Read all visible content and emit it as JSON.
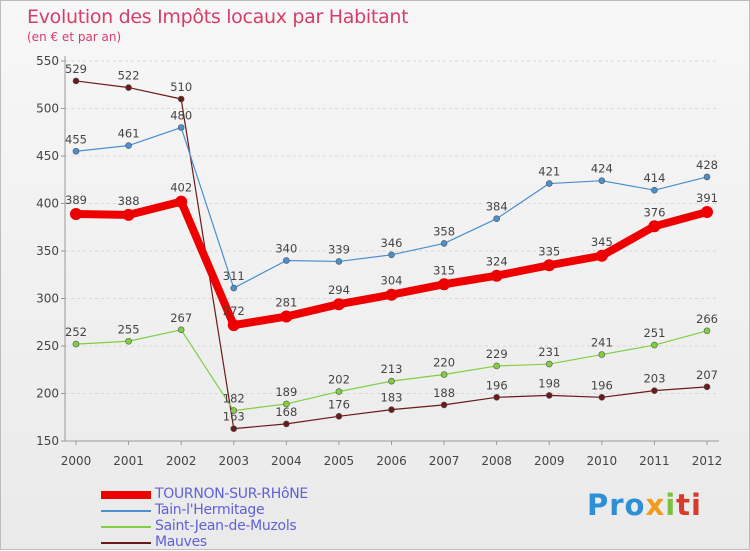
{
  "chart_data": {
    "type": "line",
    "title": "Evolution des Impôts locaux par Habitant",
    "subtitle": "(en € et par an)",
    "xlabel": "",
    "ylabel": "",
    "x": [
      "2000",
      "2001",
      "2002",
      "2003",
      "2004",
      "2005",
      "2006",
      "2007",
      "2008",
      "2009",
      "2010",
      "2011",
      "2012"
    ],
    "ylim": [
      150,
      550
    ],
    "yticks": [
      150,
      200,
      250,
      300,
      350,
      400,
      450,
      500,
      550
    ],
    "grid": "horizontal",
    "legend_position": "bottom-left",
    "series": [
      {
        "name": "TOURNON-SUR-RHôNE",
        "color": "#ee0000",
        "values": [
          389,
          388,
          402,
          272,
          281,
          294,
          304,
          315,
          324,
          335,
          345,
          376,
          391
        ]
      },
      {
        "name": "Tain-l'Hermitage",
        "color": "#4a8fcf",
        "values": [
          455,
          461,
          480,
          311,
          340,
          339,
          346,
          358,
          384,
          421,
          424,
          414,
          428
        ]
      },
      {
        "name": "Saint-Jean-de-Muzols",
        "color": "#7fcf40",
        "values": [
          252,
          255,
          267,
          182,
          189,
          202,
          213,
          220,
          229,
          231,
          241,
          251,
          266
        ]
      },
      {
        "name": "Mauves",
        "color": "#6b1a1a",
        "values": [
          529,
          522,
          510,
          163,
          168,
          176,
          183,
          188,
          196,
          198,
          196,
          203,
          207
        ]
      }
    ]
  },
  "logo": {
    "p1": "Pro",
    "p2": "x",
    "p3": "i",
    "p4": "ti"
  }
}
